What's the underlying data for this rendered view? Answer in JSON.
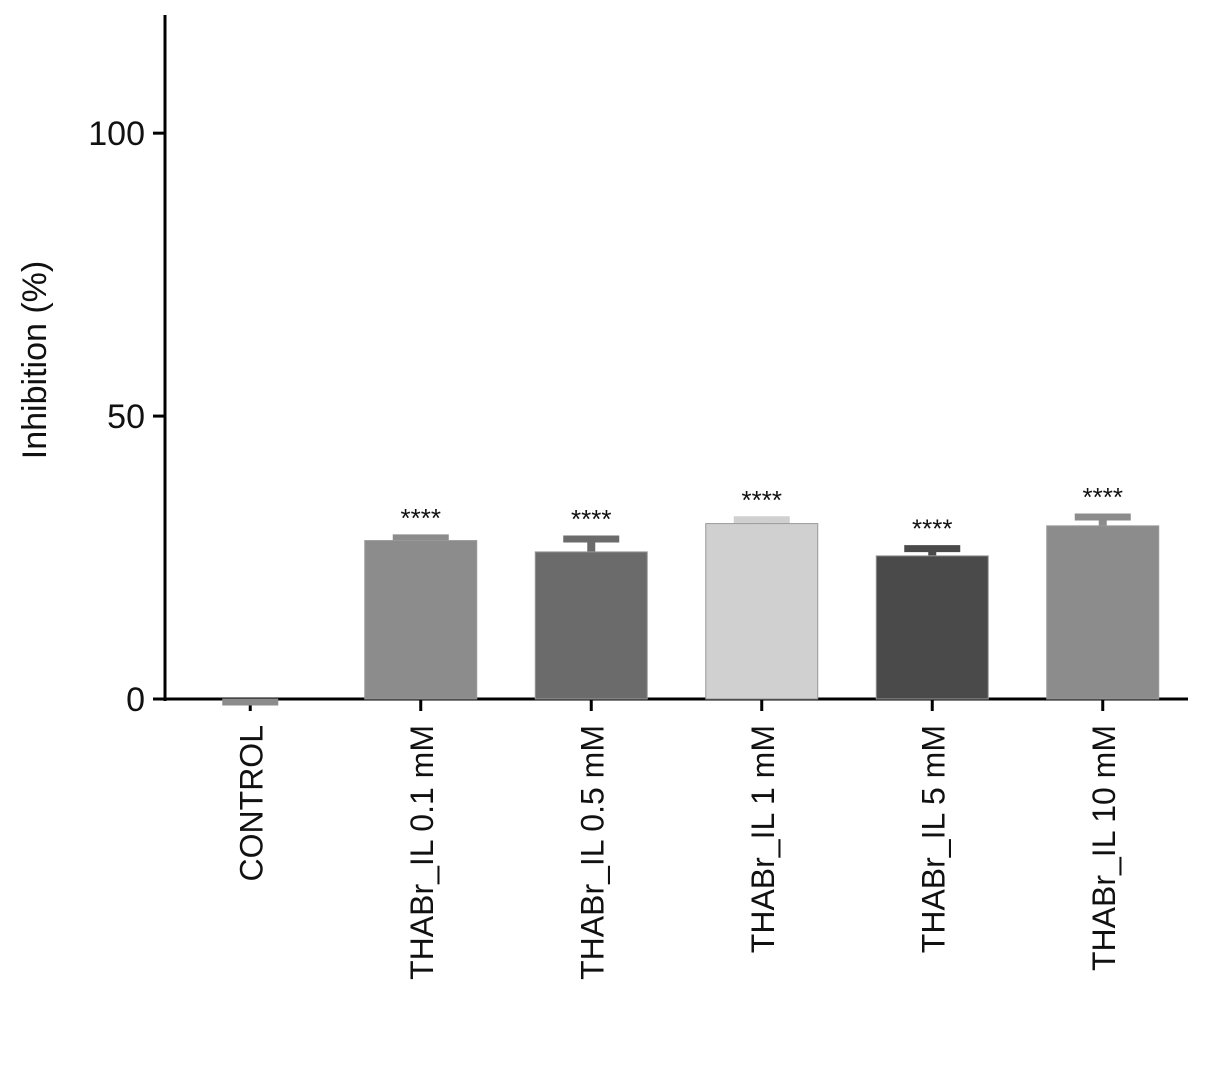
{
  "chart_data": {
    "type": "bar",
    "y_label": "Inhibition (%)",
    "categories": [
      "CONTROL",
      "THABr_IL 0.1 mM",
      "THABr_IL 0.5 mM",
      "THABr_IL 1 mM",
      "THABr_IL 5 mM",
      "THABr_IL 10 mM"
    ],
    "values": [
      0,
      28,
      26,
      31,
      25.3,
      30.6
    ],
    "errors": [
      0,
      1,
      2.8,
      1.2,
      1.8,
      2.1
    ],
    "colors": [
      "#8c8c8c",
      "#8c8c8c",
      "#6b6b6b",
      "#d0d0d0",
      "#4a4a4a",
      "#8c8c8c"
    ],
    "annotations": [
      null,
      "****",
      "****",
      "****",
      "****",
      "****"
    ],
    "ylim": [
      0,
      120
    ],
    "yticks": [
      0,
      50,
      100
    ],
    "grid": false
  }
}
